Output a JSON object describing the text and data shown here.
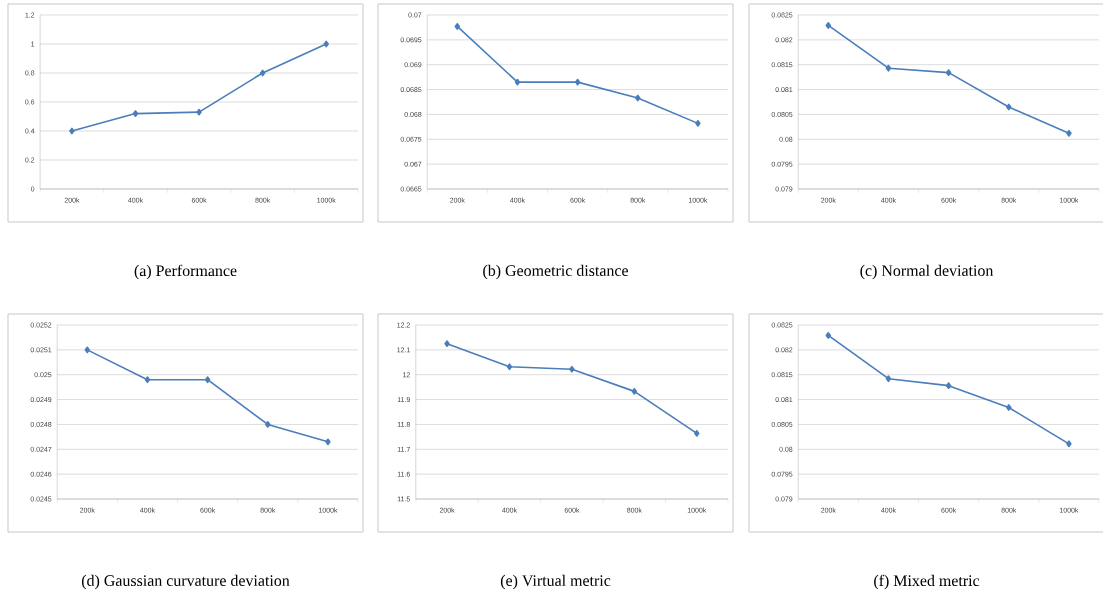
{
  "chart_data": [
    {
      "type": "line",
      "title": "(a) Performance",
      "categories": [
        "200k",
        "400k",
        "600k",
        "800k",
        "1000k"
      ],
      "values": [
        0.4,
        0.52,
        0.53,
        0.8,
        1.0
      ],
      "color": "#4a7ebb",
      "ylim": [
        0,
        1.2
      ],
      "yticks": [
        0,
        0.2,
        0.4,
        0.6,
        0.8,
        1,
        1.2
      ],
      "grid": "y",
      "marker": "diamond",
      "line_style": "solid"
    },
    {
      "type": "line",
      "title": "(b) Geometric distance",
      "categories": [
        "200k",
        "400k",
        "600k",
        "800k",
        "1000k"
      ],
      "values": [
        0.06977,
        0.06865,
        0.06865,
        0.06833,
        0.06782
      ],
      "color": "#4a7ebb",
      "ylim": [
        0.0665,
        0.07
      ],
      "yticks": [
        0.0665,
        0.067,
        0.0675,
        0.068,
        0.0685,
        0.069,
        0.0695,
        0.07
      ],
      "grid": "y",
      "marker": "diamond",
      "line_style": "solid"
    },
    {
      "type": "line",
      "title": "(c) Normal deviation",
      "categories": [
        "200k",
        "400k",
        "600k",
        "800k",
        "1000k"
      ],
      "values": [
        0.08229,
        0.08143,
        0.08134,
        0.08065,
        0.08012
      ],
      "color": "#4a7ebb",
      "ylim": [
        0.079,
        0.0825
      ],
      "yticks": [
        0.079,
        0.0795,
        0.08,
        0.0805,
        0.081,
        0.0815,
        0.082,
        0.0825
      ],
      "grid": "y",
      "marker": "diamond",
      "line_style": "solid"
    },
    {
      "type": "line",
      "title": "(d) Gaussian curvature deviation",
      "categories": [
        "200k",
        "400k",
        "600k",
        "800k",
        "1000k"
      ],
      "values": [
        0.0251,
        0.02498,
        0.02498,
        0.0248,
        0.02473
      ],
      "color": "#4a7ebb",
      "ylim": [
        0.0245,
        0.0252
      ],
      "yticks": [
        0.0245,
        0.0246,
        0.0247,
        0.0248,
        0.0249,
        0.025,
        0.0251,
        0.0252
      ],
      "grid": "y",
      "marker": "diamond",
      "line_style": "solid"
    },
    {
      "type": "line",
      "title": "(e) Virtual metric",
      "categories": [
        "200k",
        "400k",
        "600k",
        "800k",
        "1000k"
      ],
      "values": [
        12.125,
        12.032,
        12.022,
        11.933,
        11.764
      ],
      "color": "#4a7ebb",
      "ylim": [
        11.5,
        12.2
      ],
      "yticks": [
        11.5,
        11.6,
        11.7,
        11.8,
        11.9,
        12,
        12.1,
        12.2
      ],
      "grid": "y",
      "marker": "diamond",
      "line_style": "solid"
    },
    {
      "type": "line",
      "title": "(f) Mixed metric",
      "categories": [
        "200k",
        "400k",
        "600k",
        "800k",
        "1000k"
      ],
      "values": [
        0.08229,
        0.08142,
        0.08128,
        0.08084,
        0.08011
      ],
      "color": "#4a7ebb",
      "ylim": [
        0.079,
        0.0825
      ],
      "yticks": [
        0.079,
        0.0795,
        0.08,
        0.0805,
        0.081,
        0.0815,
        0.082,
        0.0825
      ],
      "grid": "y",
      "marker": "diamond",
      "line_style": "solid"
    }
  ]
}
